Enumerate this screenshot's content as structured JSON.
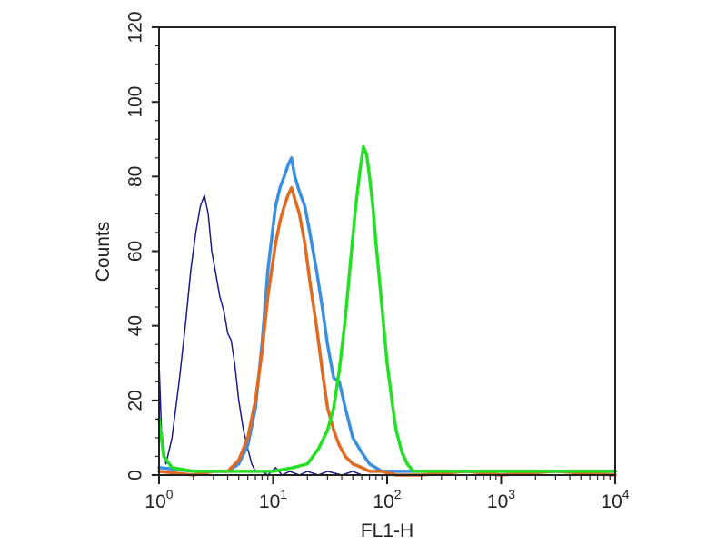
{
  "chart_data": {
    "type": "line",
    "title": "",
    "xlabel": "FL1-H",
    "ylabel": "Counts",
    "x_scale": "log",
    "xlim": [
      1,
      10000
    ],
    "ylim": [
      0,
      120
    ],
    "grid": false,
    "legend": "none",
    "x_ticks": [
      {
        "base": "10",
        "exp": "0"
      },
      {
        "base": "10",
        "exp": "1"
      },
      {
        "base": "10",
        "exp": "2"
      },
      {
        "base": "10",
        "exp": "3"
      },
      {
        "base": "10",
        "exp": "4"
      }
    ],
    "x_tick_values": [
      1,
      10,
      100,
      1000,
      10000
    ],
    "y_ticks": [
      "0",
      "20",
      "40",
      "60",
      "80",
      "100",
      "120"
    ],
    "y_tick_values": [
      0,
      20,
      40,
      60,
      80,
      100,
      120
    ],
    "series": [
      {
        "color": "#1a1a8c",
        "line_width": "thin",
        "x": [
          1.0,
          1.05,
          1.15,
          1.3,
          1.5,
          1.7,
          1.9,
          2.1,
          2.3,
          2.5,
          2.7,
          2.9,
          3.1,
          3.4,
          3.7,
          4.0,
          4.3,
          4.6,
          5.0,
          5.5,
          6.0,
          6.5,
          7.0,
          8.0,
          9.0,
          10.5,
          12,
          14,
          17,
          20,
          25,
          30,
          40,
          50,
          60,
          80
        ],
        "y": [
          30,
          12,
          3,
          10,
          25,
          40,
          55,
          65,
          72,
          75,
          70,
          60,
          55,
          48,
          44,
          38,
          36,
          30,
          20,
          12,
          7,
          3,
          1,
          1,
          0,
          2,
          0,
          1,
          0,
          1,
          0,
          1,
          0,
          1,
          0,
          0
        ]
      },
      {
        "color": "#3a8fe0",
        "line_width": "thick",
        "x": [
          1.0,
          2.0,
          3.0,
          4.0,
          5.0,
          6.0,
          7.0,
          8.0,
          9.0,
          10.5,
          11.5,
          12.5,
          13.5,
          14.5,
          15.5,
          17,
          19,
          21,
          24,
          27,
          30,
          34,
          38,
          43,
          50,
          60,
          70,
          90,
          120,
          200,
          500,
          1000,
          3000,
          10000
        ],
        "y": [
          2,
          1,
          1,
          1,
          3,
          8,
          18,
          35,
          55,
          72,
          77,
          80,
          83,
          85,
          80,
          76,
          72,
          65,
          55,
          45,
          35,
          26,
          25,
          18,
          10,
          6,
          3,
          1,
          1,
          1,
          1,
          1,
          1,
          1
        ]
      },
      {
        "color": "#e06a22",
        "line_width": "thick",
        "x": [
          1.0,
          2.0,
          3.0,
          4.0,
          5.0,
          6.0,
          7.0,
          8.0,
          9.0,
          10.5,
          11.5,
          12.5,
          13.5,
          14.5,
          15.5,
          17,
          19,
          21,
          24,
          27,
          30,
          34,
          38,
          43,
          50,
          60,
          70,
          90,
          120,
          200,
          500,
          1000,
          3000,
          10000
        ],
        "y": [
          1,
          0,
          1,
          1,
          4,
          10,
          20,
          33,
          48,
          62,
          68,
          72,
          75,
          77,
          74,
          70,
          62,
          52,
          40,
          28,
          18,
          12,
          8,
          5,
          3,
          2,
          1,
          1,
          0,
          0,
          1,
          0,
          1,
          0
        ]
      },
      {
        "color": "#22e022",
        "line_width": "thick",
        "x": [
          1.0,
          1.1,
          1.3,
          2.0,
          5.0,
          10,
          15,
          20,
          25,
          30,
          34,
          38,
          43,
          48,
          53,
          58,
          62,
          66,
          70,
          75,
          80,
          90,
          100,
          110,
          120,
          135,
          150,
          170,
          200,
          250,
          400,
          1000,
          3000,
          10000
        ],
        "y": [
          15,
          5,
          2,
          1,
          1,
          1,
          2,
          3,
          7,
          12,
          18,
          28,
          42,
          58,
          72,
          82,
          88,
          86,
          80,
          72,
          62,
          45,
          30,
          20,
          12,
          6,
          3,
          1,
          1,
          1,
          1,
          1,
          1,
          1
        ]
      }
    ]
  }
}
